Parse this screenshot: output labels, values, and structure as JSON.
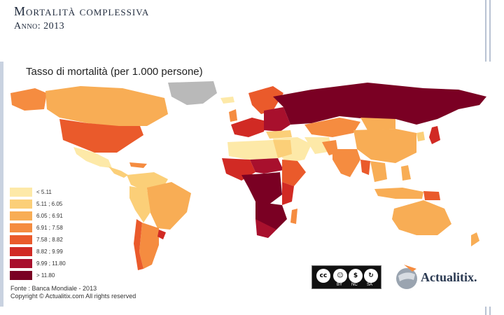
{
  "slide": {
    "title": "Mortalità complessiva",
    "subtitle": "Anno: 2013"
  },
  "map": {
    "heading": "Tasso di mortalità (per 1.000 persone)",
    "legend": [
      {
        "label": "< 5.11",
        "color": "#fde9a8"
      },
      {
        "label": "5.11 ; 6.05",
        "color": "#fbcf78"
      },
      {
        "label": "6.05 ; 6.91",
        "color": "#f8ad55"
      },
      {
        "label": "6.91 ; 7.58",
        "color": "#f58c40"
      },
      {
        "label": "7.58 ; 8.82",
        "color": "#ea5a2b"
      },
      {
        "label": "8.82 ; 9.99",
        "color": "#d12a24"
      },
      {
        "label": "9.99 ; 11.80",
        "color": "#a8102d"
      },
      {
        "label": "> 11.80",
        "color": "#7a0023"
      }
    ],
    "no_data_color": "#b9b9b9",
    "source_line": "Fonte : Banca Mondiale - 2013",
    "copyright_line": "Copyright © Actualitix.com All rights reserved"
  },
  "license": {
    "cc": "cc",
    "labels": [
      "BY",
      "NC",
      "SA"
    ]
  },
  "brand": {
    "name": "Actualitix."
  }
}
